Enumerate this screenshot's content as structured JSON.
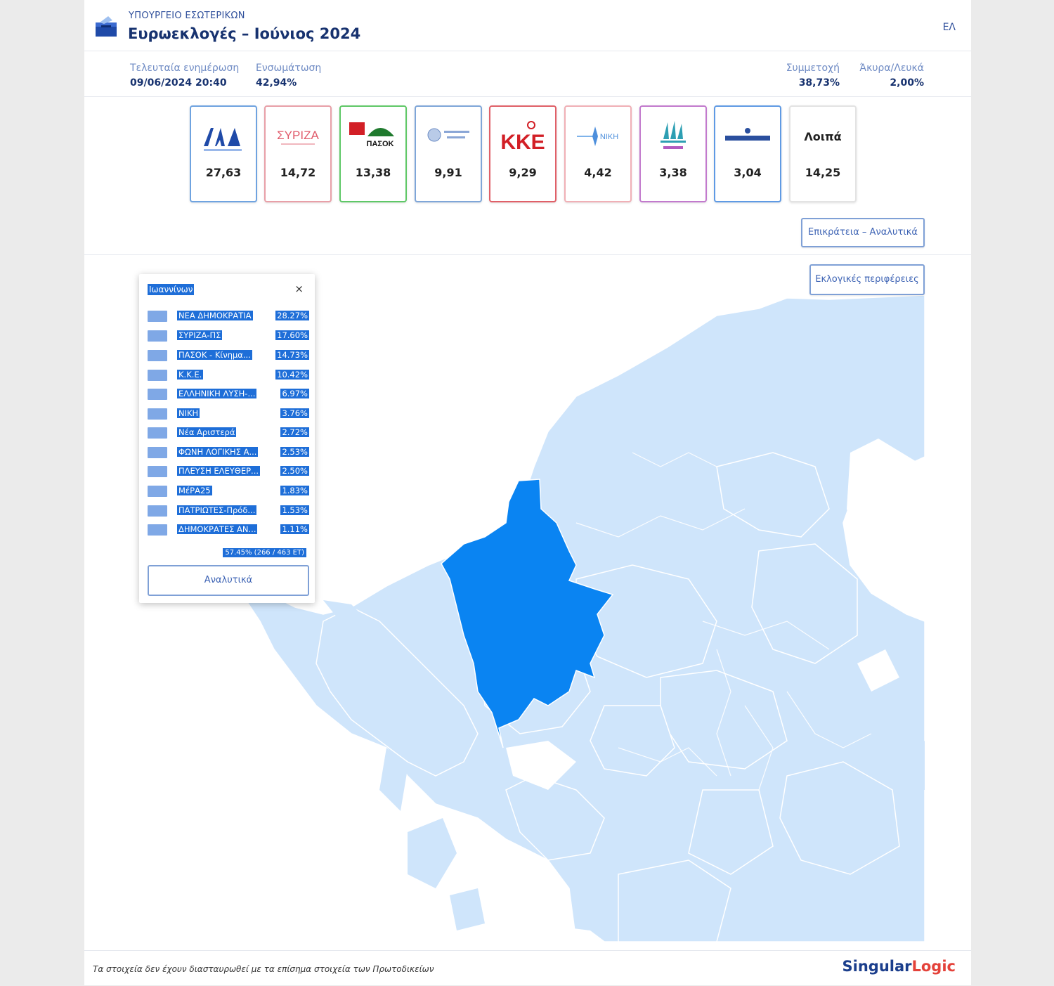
{
  "header": {
    "ministry": "ΥΠΟΥΡΓΕΙΟ ΕΣΩΤΕΡΙΚΩΝ",
    "title": "Ευρωεκλογές – Ιούνιος 2024",
    "language": "ΕΛ"
  },
  "stats": {
    "last_update_label": "Τελευταία ενημέρωση",
    "last_update_value": "09/06/2024 20:40",
    "integration_label": "Ενσωμάτωση",
    "integration_value": "42,94%",
    "participation_label": "Συμμετοχή",
    "participation_value": "38,73%",
    "invalid_label": "Άκυρα/Λευκά",
    "invalid_value": "2,00%"
  },
  "party_cards": [
    {
      "name": "ΝΕΑ ΔΗΜΟΚΡΑΤΙΑ",
      "logo_text": "ΝΔ",
      "value": "27,63",
      "color": "#1f4aa8"
    },
    {
      "name": "ΣΥΡΙΖΑ",
      "logo_text": "ΣΥΡΙΖΑ",
      "value": "14,72",
      "color": "#e36f7c"
    },
    {
      "name": "ΠΑΣΟΚ",
      "logo_text": "ΠΑΣΟΚ",
      "value": "13,38",
      "color": "#2fae3a"
    },
    {
      "name": "ΕΛΛΗΝΙΚΗ ΛΥΣΗ",
      "logo_text": "ΕΛΛΗΝΙΚΗ ΛΥΣΗ",
      "value": "9,91",
      "color": "#5a86c9"
    },
    {
      "name": "ΚΚΕ",
      "logo_text": "ΚΚΕ",
      "value": "9,29",
      "color": "#d21f26"
    },
    {
      "name": "ΝΙΚΗ",
      "logo_text": "ΝΙΚΗ",
      "value": "4,42",
      "color": "#e9909a"
    },
    {
      "name": "ΠΛΕΥΣΗ ΕΛΕΥΘΕΡΙΑΣ",
      "logo_text": "ΠΛΕΥΣΗ ΕΛΕΥΘΕΡΙΑΣ",
      "value": "3,38",
      "color": "#b25bc0"
    },
    {
      "name": "ΦΩΝΗ ΛΟΓΙΚΗΣ",
      "logo_text": "ΦΩΝΗ ΛΟΓΙΚΗΣ",
      "value": "3,04",
      "color": "#3a7fd8"
    },
    {
      "name": "Λοιπά",
      "logo_text": "Λοιπά",
      "value": "14,25",
      "color": "#e3e3e3"
    }
  ],
  "buttons": {
    "nationwide": "Επικράτεια – Αναλυτικά",
    "regions": "Εκλογικές περιφέρειες"
  },
  "popup": {
    "title": "Ιωαννίνων",
    "close": "×",
    "rows": [
      {
        "name": "ΝΕΑ ΔΗΜΟΚΡΑΤΙΑ",
        "pct": "28.27%"
      },
      {
        "name": "ΣΥΡΙΖΑ-ΠΣ",
        "pct": "17.60%"
      },
      {
        "name": "ΠΑΣΟΚ - Κίνημα...",
        "pct": "14.73%"
      },
      {
        "name": "Κ.Κ.Ε.",
        "pct": "10.42%"
      },
      {
        "name": "ΕΛΛΗΝΙΚΗ ΛΥΣΗ-...",
        "pct": "6.97%"
      },
      {
        "name": "ΝΙΚΗ",
        "pct": "3.76%"
      },
      {
        "name": "Νέα Αριστερά",
        "pct": "2.72%"
      },
      {
        "name": "ΦΩΝΗ ΛΟΓΙΚΗΣ Α...",
        "pct": "2.53%"
      },
      {
        "name": "ΠΛΕΥΣΗ ΕΛΕΥΘΕΡ...",
        "pct": "2.50%"
      },
      {
        "name": "ΜέΡΑ25",
        "pct": "1.83%"
      },
      {
        "name": "ΠΑΤΡΙΩΤΕΣ-Πρόδ...",
        "pct": "1.53%"
      },
      {
        "name": "ΔΗΜΟΚΡΑΤΕΣ ΑΝ...",
        "pct": "1.11%"
      }
    ],
    "footer": "57.45% (266 / 463 ΕΤ)",
    "details_button": "Αναλυτικά"
  },
  "footer": {
    "disclaimer": "Τα στοιχεία δεν έχουν διασταυρωθεί με τα επίσημα στοιχεία των Πρωτοδικείων",
    "brand_main": "Singular",
    "brand_accent": "Logic"
  },
  "colors": {
    "map_base": "#cfe5fb",
    "map_selected": "#0a84f2",
    "map_border": "#ffffff",
    "title_text": "#17326f"
  }
}
